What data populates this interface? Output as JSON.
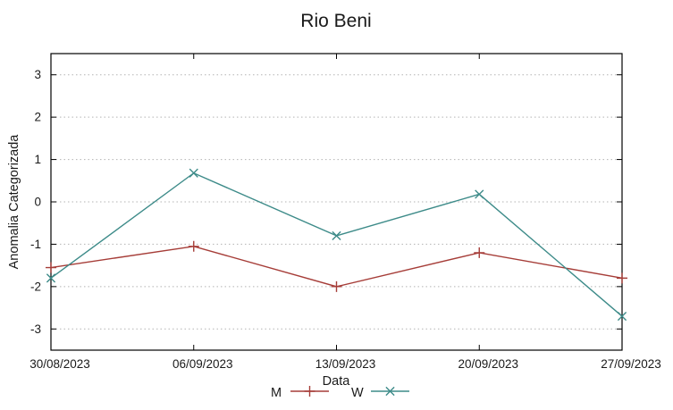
{
  "chart_data": {
    "type": "line",
    "title": "Rio Beni",
    "xlabel": "Data",
    "ylabel": "Anomalia Categorizada",
    "categories": [
      "30/08/2023",
      "06/09/2023",
      "13/09/2023",
      "20/09/2023",
      "27/09/2023"
    ],
    "series": [
      {
        "name": "M",
        "color": "#a63d38",
        "marker": "plus",
        "values": [
          -1.55,
          -1.05,
          -2.0,
          -1.2,
          -1.8
        ]
      },
      {
        "name": "W",
        "color": "#3d8b89",
        "marker": "cross",
        "values": [
          -1.8,
          0.68,
          -0.8,
          0.18,
          -2.7
        ]
      }
    ],
    "ylim": [
      -3.5,
      3.5
    ],
    "yticks": [
      -3,
      -2,
      -1,
      0,
      1,
      2,
      3
    ],
    "grid": "horizontal-dotted",
    "grid_color": "#b3b3b3",
    "border_color": "#000000",
    "background_color": "#ffffff",
    "legend_position": "bottom-center"
  }
}
